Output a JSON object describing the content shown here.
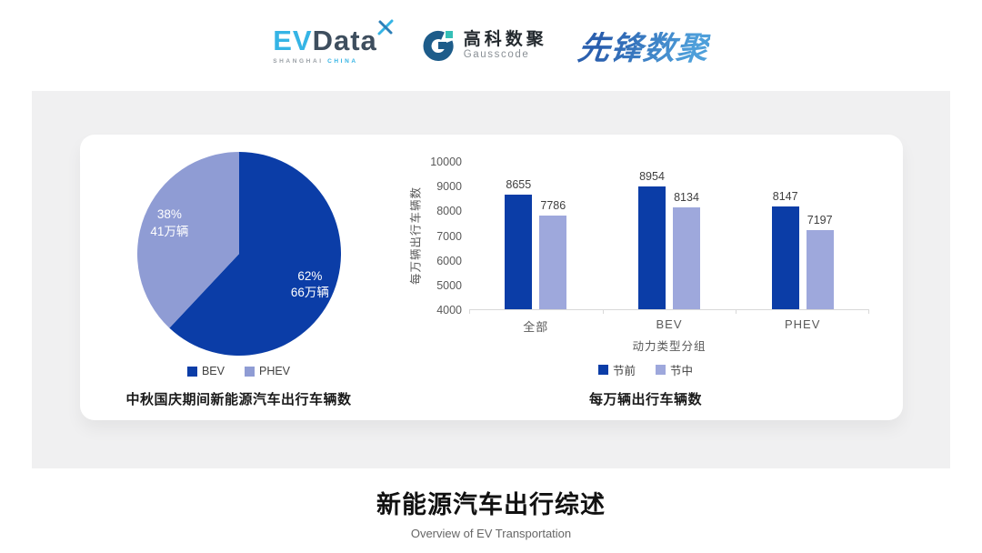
{
  "header": {
    "evdata": {
      "part1": "EV",
      "part2": "Data",
      "sub_left": "SHANGHAI",
      "sub_right": "CHINA"
    },
    "gausscode": {
      "name_cn": "高科数聚",
      "name_en": "Gausscode"
    },
    "xianfeng": {
      "name": "先锋数聚"
    }
  },
  "colors": {
    "series_dark_blue": "#0B3DA7",
    "series_light_blue": "#9EA8DC",
    "pie_light_blue": "#8F9CD4",
    "panel_bg": "#F0F0F1",
    "card_bg": "#FFFFFF",
    "axis_gray": "#595959",
    "evdata_blue": "#35B4E5",
    "evdata_dark": "#3E4E5E",
    "gauss_dark_blue": "#1D5C8A",
    "gauss_teal": "#35BFB7",
    "xianfeng_blue": "#2F79C8"
  },
  "chart_data": [
    {
      "type": "pie",
      "title": "中秋国庆期间新能源汽车出行车辆数",
      "start_angle": "top",
      "direction": "clockwise",
      "legend_position": "bottom",
      "slices": [
        {
          "label": "BEV",
          "value": 62,
          "pct": "62%",
          "amount": "66万辆",
          "color": "#0B3DA7"
        },
        {
          "label": "PHEV",
          "value": 38,
          "pct": "38%",
          "amount": "41万辆",
          "color": "#8F9CD4"
        }
      ]
    },
    {
      "type": "bar",
      "title": "每万辆出行车辆数",
      "categories": [
        "全部",
        "BEV",
        "PHEV"
      ],
      "series": [
        {
          "name": "节前",
          "values": [
            8655,
            8954,
            8147
          ],
          "color": "#0B3DA7"
        },
        {
          "name": "节中",
          "values": [
            7786,
            8134,
            7197
          ],
          "color": "#9EA8DC"
        }
      ],
      "xlabel": "动力类型分组",
      "ylabel": "每万辆出行车辆数",
      "ylim": [
        4000,
        10000
      ],
      "yticks": [
        4000,
        5000,
        6000,
        7000,
        8000,
        9000,
        10000
      ],
      "grid": false,
      "legend_position": "bottom"
    }
  ],
  "footer": {
    "title": "新能源汽车出行综述",
    "subtitle": "Overview of EV Transportation"
  }
}
